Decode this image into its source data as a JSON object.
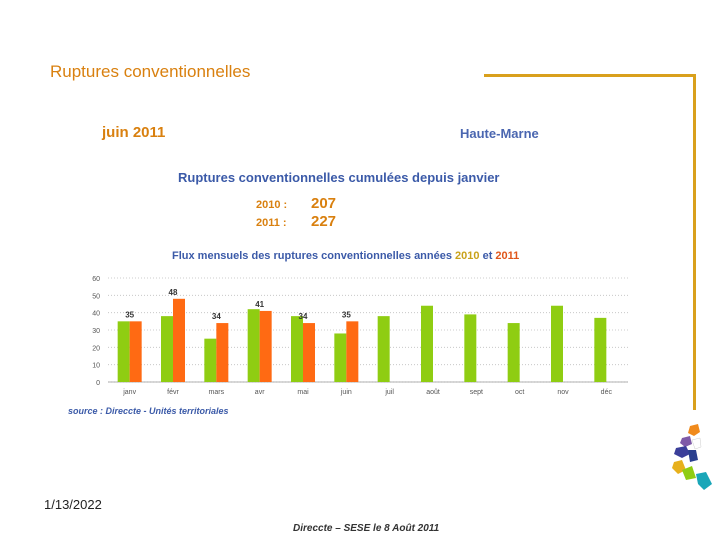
{
  "slide": {
    "title": "Ruptures conventionnelles",
    "month": "juin 2011",
    "region": "Haute-Marne",
    "date": "1/13/2022",
    "footer": "Direccte – SESE le 8 Août 2011",
    "source": "source : Direccte - Unités territoriales"
  },
  "cumulative": {
    "title": "Ruptures conventionnelles cumulées depuis janvier",
    "rows": [
      {
        "year": "2010 :",
        "value": "207"
      },
      {
        "year": "2011 :",
        "value": "227"
      }
    ]
  },
  "chart_title_parts": [
    "Flux mensuels des ruptures conventionnelles années",
    " 2010",
    " et",
    " 2011"
  ],
  "colors": {
    "y2010": "#8fcd12",
    "y2011": "#ff6a13",
    "accent": "#d9800f",
    "blue": "#3b5aa8"
  },
  "logo": {
    "name": "Haute-Marne map logo"
  },
  "chart_data": {
    "type": "bar",
    "title": "Flux mensuels des ruptures conventionnelles années 2010 et 2011",
    "categories": [
      "janv",
      "févr",
      "mars",
      "avr",
      "mai",
      "juin",
      "juil",
      "août",
      "sept",
      "oct",
      "nov",
      "déc"
    ],
    "series": [
      {
        "name": "2010",
        "values": [
          35,
          38,
          25,
          42,
          38,
          28,
          38,
          44,
          39,
          34,
          44,
          37
        ]
      },
      {
        "name": "2011",
        "values": [
          35,
          48,
          34,
          41,
          34,
          35,
          null,
          null,
          null,
          null,
          null,
          null
        ]
      }
    ],
    "data_labels": [
      {
        "month": "janv",
        "value": "35"
      },
      {
        "month": "févr",
        "value": "48"
      },
      {
        "month": "mars",
        "value": "34"
      },
      {
        "month": "avr",
        "value": "41"
      },
      {
        "month": "mai",
        "value": "34"
      },
      {
        "month": "juin",
        "value": "35"
      }
    ],
    "y_ticks": [
      "0",
      "10",
      "20",
      "30",
      "40",
      "50",
      "60"
    ],
    "ylim": [
      0,
      60
    ],
    "grid": true,
    "xlabel": "",
    "ylabel": ""
  }
}
